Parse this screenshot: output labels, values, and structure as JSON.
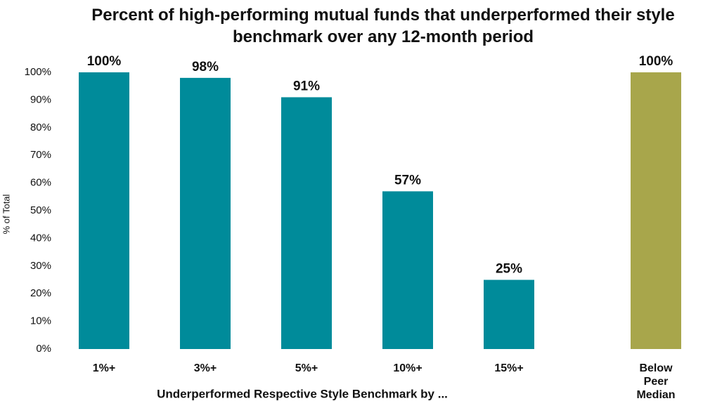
{
  "chart_data": {
    "type": "bar",
    "title": "Percent of high-performing mutual funds that underperformed their style benchmark over any 12-month period",
    "y_label": "% of Total",
    "x_label": "Underperformed Respective Style Benchmark by ...",
    "categories": [
      "1%+",
      "3%+",
      "5%+",
      "10%+",
      "15%+",
      "Below Peer Median"
    ],
    "values": [
      100,
      98,
      91,
      57,
      25,
      100
    ],
    "value_labels": [
      "100%",
      "98%",
      "91%",
      "57%",
      "25%",
      "100%"
    ],
    "colors": [
      "#008b9a",
      "#008b9a",
      "#008b9a",
      "#008b9a",
      "#008b9a",
      "#a8a64b"
    ],
    "ylim": [
      0,
      100
    ],
    "yticks": [
      {
        "value": 0,
        "label": "0%"
      },
      {
        "value": 10,
        "label": "10%"
      },
      {
        "value": 20,
        "label": "20%"
      },
      {
        "value": 30,
        "label": "30%"
      },
      {
        "value": 40,
        "label": "40%"
      },
      {
        "value": 50,
        "label": "50%"
      },
      {
        "value": 60,
        "label": "60%"
      },
      {
        "value": 70,
        "label": "70%"
      },
      {
        "value": 80,
        "label": "80%"
      },
      {
        "value": 90,
        "label": "90%"
      },
      {
        "value": 100,
        "label": "100%"
      }
    ],
    "grid": false
  }
}
